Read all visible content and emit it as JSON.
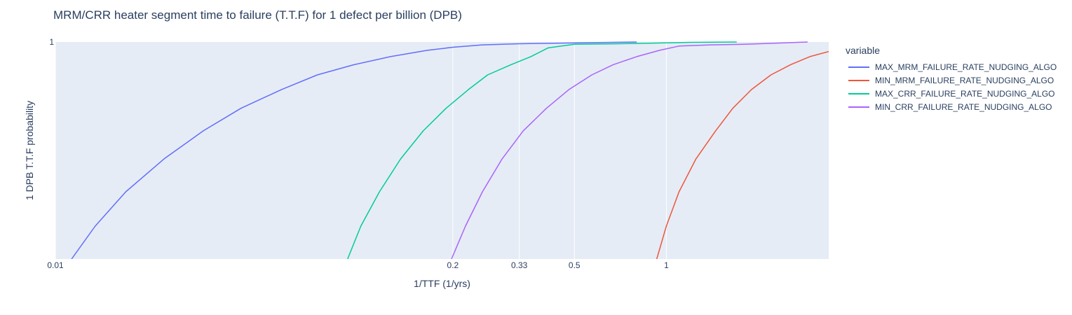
{
  "chart_data": {
    "type": "line",
    "title": "MRM/CRR heater segment time to failure (T.T.F) for 1 defect per billion (DPB)",
    "xlabel": "1/TTF (1/yrs)",
    "ylabel": "1 DPB T.T.F probability",
    "x_scale": "log",
    "y_scale": "log",
    "xlim": [
      0.01,
      3.4
    ],
    "ylim": [
      0.15,
      1
    ],
    "x_ticks": [
      {
        "value": 0.01,
        "label": "0.01"
      },
      {
        "value": 0.2,
        "label": "0.2"
      },
      {
        "value": 0.33,
        "label": "0.33"
      },
      {
        "value": 0.5,
        "label": "0.5"
      },
      {
        "value": 1,
        "label": "1"
      }
    ],
    "y_ticks": [
      {
        "value": 1,
        "label": "1"
      }
    ],
    "grid": true,
    "legend_title": "variable",
    "legend_position": "right",
    "series": [
      {
        "name": "MAX_MRM_FAILURE_RATE_NUDGING_ALGO",
        "color": "#636efa",
        "points": [
          [
            0.0113,
            0.15
          ],
          [
            0.0135,
            0.2
          ],
          [
            0.017,
            0.27
          ],
          [
            0.0227,
            0.36
          ],
          [
            0.0305,
            0.46
          ],
          [
            0.0405,
            0.56
          ],
          [
            0.055,
            0.66
          ],
          [
            0.072,
            0.75
          ],
          [
            0.095,
            0.82
          ],
          [
            0.125,
            0.88
          ],
          [
            0.165,
            0.93
          ],
          [
            0.2,
            0.955
          ],
          [
            0.25,
            0.975
          ],
          [
            0.33,
            0.985
          ],
          [
            0.45,
            0.99
          ],
          [
            0.6,
            0.995
          ],
          [
            0.8,
            1.0
          ]
        ]
      },
      {
        "name": "MIN_MRM_FAILURE_RATE_NUDGING_ALGO",
        "color": "#EF553B",
        "points": [
          [
            0.93,
            0.15
          ],
          [
            1.0,
            0.2
          ],
          [
            1.1,
            0.27
          ],
          [
            1.25,
            0.36
          ],
          [
            1.45,
            0.46
          ],
          [
            1.65,
            0.56
          ],
          [
            1.9,
            0.66
          ],
          [
            2.2,
            0.75
          ],
          [
            2.55,
            0.82
          ],
          [
            2.95,
            0.88
          ],
          [
            3.4,
            0.92
          ]
        ]
      },
      {
        "name": "MAX_CRR_FAILURE_RATE_NUDGING_ALGO",
        "color": "#00cc96",
        "points": [
          [
            0.0905,
            0.15
          ],
          [
            0.1,
            0.2
          ],
          [
            0.115,
            0.27
          ],
          [
            0.135,
            0.36
          ],
          [
            0.16,
            0.46
          ],
          [
            0.19,
            0.56
          ],
          [
            0.225,
            0.66
          ],
          [
            0.26,
            0.75
          ],
          [
            0.31,
            0.82
          ],
          [
            0.36,
            0.88
          ],
          [
            0.41,
            0.95
          ],
          [
            0.5,
            0.98
          ],
          [
            0.7,
            0.985
          ],
          [
            0.9,
            0.99
          ],
          [
            1.2,
            0.997
          ],
          [
            1.7,
            1.0
          ]
        ]
      },
      {
        "name": "MIN_CRR_FAILURE_RATE_NUDGING_ALGO",
        "color": "#ab63fa",
        "points": [
          [
            0.198,
            0.15
          ],
          [
            0.22,
            0.2
          ],
          [
            0.25,
            0.27
          ],
          [
            0.29,
            0.36
          ],
          [
            0.34,
            0.46
          ],
          [
            0.405,
            0.56
          ],
          [
            0.48,
            0.66
          ],
          [
            0.57,
            0.75
          ],
          [
            0.67,
            0.82
          ],
          [
            0.8,
            0.88
          ],
          [
            0.95,
            0.93
          ],
          [
            1.1,
            0.965
          ],
          [
            1.4,
            0.975
          ],
          [
            1.8,
            0.98
          ],
          [
            2.3,
            0.99
          ],
          [
            2.9,
            1.0
          ]
        ]
      }
    ]
  }
}
